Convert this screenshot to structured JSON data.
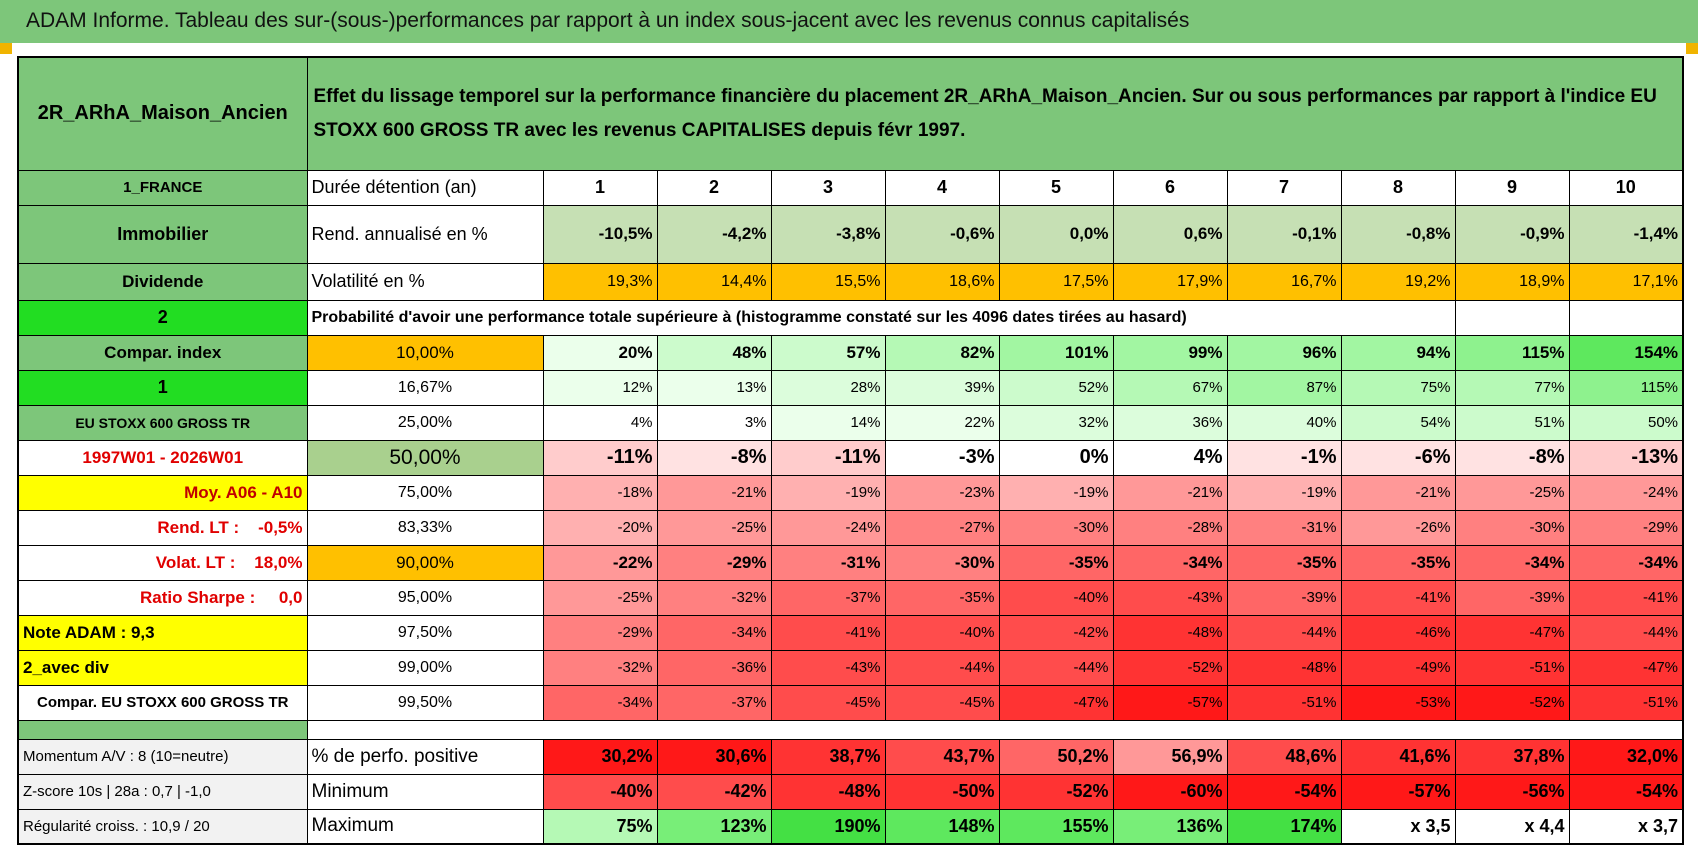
{
  "header": {
    "title": "ADAM Informe. Tableau des sur-(sous-)performances par rapport à un index sous-jacent avec les revenus connus capitalisés"
  },
  "table": {
    "name": "2R_ARhA_Maison_Ancien",
    "description": "Effet du lissage temporel sur la performance financière du placement 2R_ARhA_Maison_Ancien. Sur ou sous performances par rapport à l'indice EU STOXX 600 GROSS TR avec les revenus CAPITALISES depuis févr 1997.",
    "rows": [
      {
        "label": "1_FRANCE",
        "cells": [
          "Durée détention (an)",
          "1",
          "2",
          "3",
          "4",
          "5",
          "6",
          "7",
          "8",
          "9",
          "10"
        ]
      },
      {
        "label": "Immobilier",
        "cells": [
          "Rend. annualisé en %",
          "-10,5%",
          "-4,2%",
          "-3,8%",
          "-0,6%",
          "0,0%",
          "0,6%",
          "-0,1%",
          "-0,8%",
          "-0,9%",
          "-1,4%"
        ]
      },
      {
        "label": "Dividende",
        "cells": [
          "Volatilité en %",
          "19,3%",
          "14,4%",
          "15,5%",
          "18,6%",
          "17,5%",
          "17,9%",
          "16,7%",
          "19,2%",
          "18,9%",
          "17,1%"
        ]
      },
      {
        "label": "2",
        "cells": [
          "Probabilité d'avoir une performance totale supérieure à (histogramme constaté sur les 4096 dates tirées au hasard)"
        ]
      },
      {
        "label": "Compar. index",
        "cells": [
          "10,00%",
          "20%",
          "48%",
          "57%",
          "82%",
          "101%",
          "99%",
          "96%",
          "94%",
          "115%",
          "154%"
        ]
      },
      {
        "label": "1",
        "cells": [
          "16,67%",
          "12%",
          "13%",
          "28%",
          "39%",
          "52%",
          "67%",
          "87%",
          "75%",
          "77%",
          "115%"
        ]
      },
      {
        "label": "EU STOXX 600 GROSS TR",
        "cells": [
          "25,00%",
          "4%",
          "3%",
          "14%",
          "22%",
          "32%",
          "36%",
          "40%",
          "54%",
          "51%",
          "50%"
        ]
      },
      {
        "label": "1997W01 - 2026W01",
        "cells": [
          "50,00%",
          "-11%",
          "-8%",
          "-11%",
          "-3%",
          "0%",
          "4%",
          "-1%",
          "-6%",
          "-8%",
          "-13%"
        ]
      },
      {
        "label": "Moy. A06 - A10",
        "cells": [
          "75,00%",
          "-18%",
          "-21%",
          "-19%",
          "-23%",
          "-19%",
          "-21%",
          "-19%",
          "-21%",
          "-25%",
          "-24%"
        ]
      },
      {
        "label": "Rend. LT :    -0,5%",
        "cells": [
          "83,33%",
          "-20%",
          "-25%",
          "-24%",
          "-27%",
          "-30%",
          "-28%",
          "-31%",
          "-26%",
          "-30%",
          "-29%"
        ]
      },
      {
        "label": "Volat. LT :    18,0%",
        "cells": [
          "90,00%",
          "-22%",
          "-29%",
          "-31%",
          "-30%",
          "-35%",
          "-34%",
          "-35%",
          "-35%",
          "-34%",
          "-34%"
        ]
      },
      {
        "label": "Ratio Sharpe :     0,0",
        "cells": [
          "95,00%",
          "-25%",
          "-32%",
          "-37%",
          "-35%",
          "-40%",
          "-43%",
          "-39%",
          "-41%",
          "-39%",
          "-41%"
        ]
      },
      {
        "label": "Note ADAM : 9,3",
        "cells": [
          "97,50%",
          "-29%",
          "-34%",
          "-41%",
          "-40%",
          "-42%",
          "-48%",
          "-44%",
          "-46%",
          "-47%",
          "-44%"
        ]
      },
      {
        "label": "2_avec div",
        "cells": [
          "99,00%",
          "-32%",
          "-36%",
          "-43%",
          "-44%",
          "-44%",
          "-52%",
          "-48%",
          "-49%",
          "-51%",
          "-47%"
        ]
      },
      {
        "label": "Compar. EU STOXX 600 GROSS TR",
        "cells": [
          "99,50%",
          "-34%",
          "-37%",
          "-45%",
          "-45%",
          "-47%",
          "-57%",
          "-51%",
          "-53%",
          "-52%",
          "-51%"
        ]
      },
      {
        "label": "Momentum A/V : 8 (10=neutre)",
        "cells": [
          "% de perfo. positive",
          "30,2%",
          "30,6%",
          "38,7%",
          "43,7%",
          "50,2%",
          "56,9%",
          "48,6%",
          "41,6%",
          "37,8%",
          "32,0%"
        ]
      },
      {
        "label": "Z-score 10s | 28a : 0,7 | -1,0",
        "cells": [
          "Minimum",
          "-40%",
          "-42%",
          "-48%",
          "-50%",
          "-52%",
          "-60%",
          "-54%",
          "-57%",
          "-56%",
          "-54%"
        ]
      },
      {
        "label": "Régularité croiss. : 10,9 / 20",
        "cells": [
          "Maximum",
          "75%",
          "123%",
          "190%",
          "148%",
          "155%",
          "136%",
          "174%",
          "x 3,5",
          "x 4,4",
          "x 3,7"
        ]
      }
    ]
  }
}
